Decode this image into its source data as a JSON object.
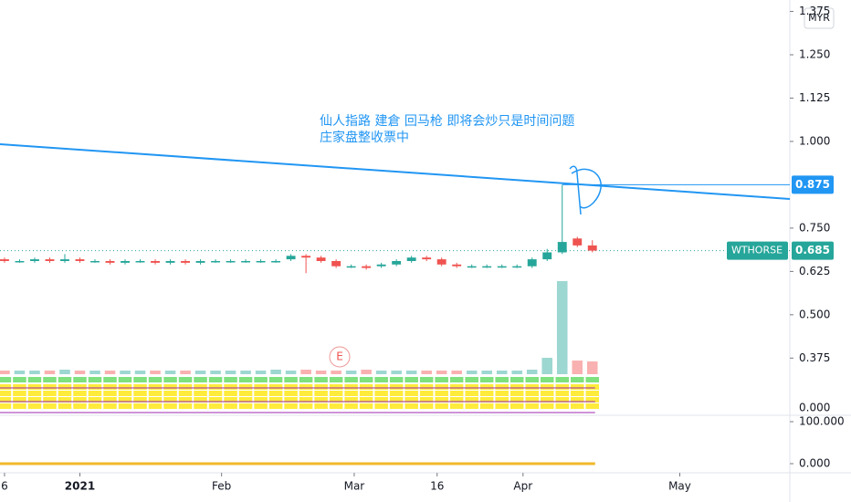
{
  "chart_data": {
    "type": "candlestick",
    "currency": "MYR",
    "annotation": [
      "仙人指路 建倉 回马枪 即将会炒只是时间问题",
      "庄家盘整收票中"
    ],
    "marker": "E",
    "open": [
      0.66,
      0.655,
      0.655,
      0.66,
      0.655,
      0.66,
      0.655,
      0.655,
      0.65,
      0.655,
      0.655,
      0.65,
      0.655,
      0.65,
      0.655,
      0.655,
      0.655,
      0.655,
      0.655,
      0.66,
      0.67,
      0.665,
      0.655,
      0.64,
      0.64,
      0.64,
      0.645,
      0.655,
      0.665,
      0.66,
      0.645,
      0.64,
      0.64,
      0.64,
      0.64,
      0.64,
      0.66,
      0.68,
      0.72,
      0.7
    ],
    "high": [
      0.665,
      0.66,
      0.665,
      0.665,
      0.675,
      0.665,
      0.66,
      0.66,
      0.66,
      0.66,
      0.66,
      0.66,
      0.66,
      0.66,
      0.66,
      0.66,
      0.66,
      0.66,
      0.66,
      0.675,
      0.675,
      0.67,
      0.66,
      0.645,
      0.645,
      0.65,
      0.66,
      0.67,
      0.67,
      0.665,
      0.65,
      0.645,
      0.645,
      0.645,
      0.645,
      0.665,
      0.69,
      0.875,
      0.725,
      0.715
    ],
    "low": [
      0.65,
      0.65,
      0.65,
      0.65,
      0.65,
      0.65,
      0.65,
      0.645,
      0.645,
      0.65,
      0.645,
      0.645,
      0.645,
      0.645,
      0.65,
      0.65,
      0.65,
      0.65,
      0.65,
      0.655,
      0.62,
      0.65,
      0.635,
      0.635,
      0.63,
      0.635,
      0.64,
      0.65,
      0.655,
      0.64,
      0.635,
      0.635,
      0.635,
      0.635,
      0.635,
      0.635,
      0.655,
      0.675,
      0.695,
      0.68
    ],
    "close": [
      0.655,
      0.655,
      0.66,
      0.655,
      0.66,
      0.655,
      0.655,
      0.65,
      0.655,
      0.655,
      0.65,
      0.655,
      0.65,
      0.655,
      0.655,
      0.655,
      0.655,
      0.655,
      0.655,
      0.67,
      0.665,
      0.655,
      0.64,
      0.64,
      0.635,
      0.645,
      0.655,
      0.665,
      0.66,
      0.645,
      0.64,
      0.64,
      0.64,
      0.64,
      0.64,
      0.66,
      0.68,
      0.71,
      0.7,
      0.685
    ],
    "volume": [
      4,
      4,
      4,
      4,
      5,
      4,
      4,
      4,
      4,
      4,
      4,
      4,
      4,
      4,
      4,
      4,
      4,
      4,
      5,
      4,
      5,
      4,
      4,
      4,
      5,
      4,
      4,
      4,
      4,
      4,
      4,
      4,
      4,
      4,
      4,
      5,
      18,
      102,
      15,
      14
    ],
    "up_color": "#26a69a",
    "down_color": "#ef5350",
    "ylim": [
      0.21,
      1.408
    ],
    "yticks": [
      {
        "value": 1.375,
        "label": "1.375"
      },
      {
        "value": 1.25,
        "label": "1.250"
      },
      {
        "value": 1.125,
        "label": "1.125"
      },
      {
        "value": 1,
        "label": "1.000"
      },
      {
        "value": 0.75,
        "label": "0.750"
      },
      {
        "value": 0.625,
        "label": "0.625"
      },
      {
        "value": 0.5,
        "label": "0.500"
      },
      {
        "value": 0.375,
        "label": "0.375"
      }
    ],
    "xlim": [
      -0.3,
      52.1
    ],
    "xticks": [
      {
        "value": 0,
        "label": "6"
      },
      {
        "value": 5,
        "label": "2021"
      },
      {
        "value": 14.4,
        "label": "Feb"
      },
      {
        "value": 23.2,
        "label": "Mar"
      },
      {
        "value": 28.7,
        "label": "16"
      },
      {
        "value": 34.4,
        "label": "Apr"
      },
      {
        "value": 44.8,
        "label": "May"
      }
    ],
    "trendline": {
      "x": [
        -0.3,
        52.1
      ],
      "values": [
        0.992,
        0.834
      ],
      "color": "#2196f3"
    },
    "horizontal_line": {
      "value": 0.875,
      "label": "0.875",
      "color": "#2196f3"
    },
    "last_price": {
      "symbol": "WTHORSE",
      "value": 0.685,
      "label": "0.685"
    },
    "overlay_tick": {
      "value": 0,
      "label": "0.000"
    },
    "lower_pane": {
      "yticks": [
        {
          "value": 100,
          "label": "100.000"
        },
        {
          "value": 0,
          "label": "0.000"
        }
      ],
      "line_value": 0,
      "color": "#f0b92a"
    }
  }
}
